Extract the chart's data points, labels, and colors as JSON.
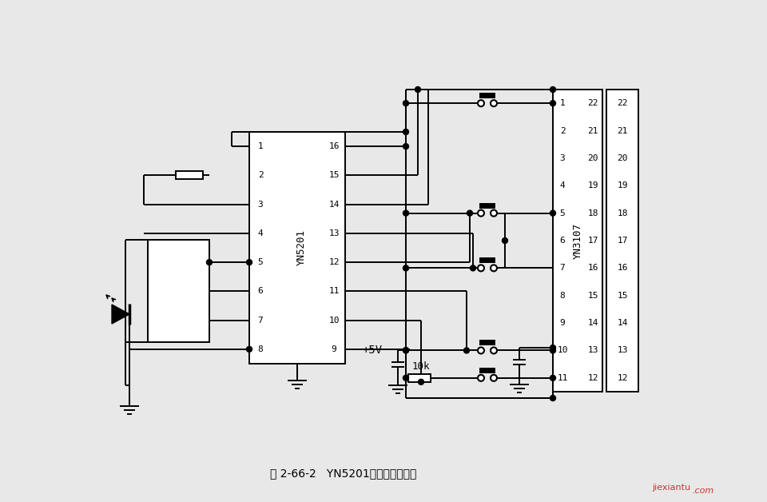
{
  "bg_color": "#e8e8e8",
  "line_color": "#000000",
  "caption": "图 2-66-2   YN5201典型应用电路图",
  "watermark1": "jiexiantu",
  "watermark2": ".com",
  "ic1_label": "YN5201",
  "ic2_label": "YN3107",
  "plus5v_label": "+5V",
  "resistor_label": "10k",
  "ic1_pins_L": [
    "1",
    "2",
    "3",
    "4",
    "5",
    "6",
    "7",
    "8"
  ],
  "ic1_pins_R": [
    "16",
    "15",
    "14",
    "13",
    "12",
    "11",
    "10",
    "9"
  ],
  "ic2_pins_L": [
    "1",
    "2",
    "3",
    "4",
    "5",
    "6",
    "7",
    "8",
    "9",
    "10",
    "11"
  ],
  "ic2_pins_R": [
    "22",
    "21",
    "20",
    "19",
    "18",
    "17",
    "16",
    "15",
    "14",
    "13",
    "12"
  ]
}
